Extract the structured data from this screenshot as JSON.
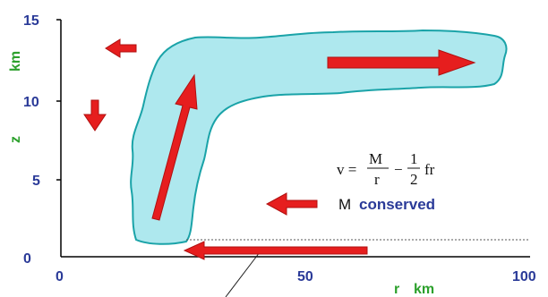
{
  "axes": {
    "x_label_r": "r",
    "x_label_unit": "km",
    "y_label_z": "z",
    "y_label_unit": "km",
    "x_ticks": [
      "0",
      "50",
      "100"
    ],
    "y_ticks": [
      "0",
      "5",
      "10",
      "15"
    ]
  },
  "equation": {
    "lhs": "v =",
    "num1": "M",
    "den1": "r",
    "minus": "−",
    "num2": "1",
    "den2": "2",
    "tail": "fr"
  },
  "annotation": {
    "m": "M",
    "conserved": "conserved"
  },
  "colors": {
    "cloud_fill": "#aee8ee",
    "cloud_stroke": "#1aa3a8",
    "arrow": "#e61e1e",
    "tick": "#2a3a98",
    "axis_label": "#2ca02c"
  }
}
